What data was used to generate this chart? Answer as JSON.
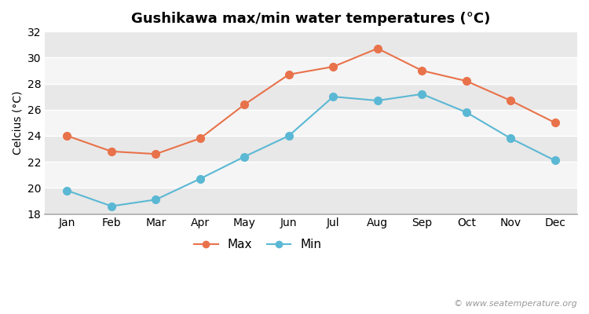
{
  "title": "Gushikawa max/min water temperatures (°C)",
  "ylabel": "Celcius (°C)",
  "months": [
    "Jan",
    "Feb",
    "Mar",
    "Apr",
    "May",
    "Jun",
    "Jul",
    "Aug",
    "Sep",
    "Oct",
    "Nov",
    "Dec"
  ],
  "max_temps": [
    24.0,
    22.8,
    22.6,
    23.8,
    26.4,
    28.7,
    29.3,
    30.7,
    29.0,
    28.2,
    26.7,
    25.0
  ],
  "min_temps": [
    19.8,
    18.6,
    19.1,
    20.7,
    22.4,
    24.0,
    27.0,
    26.7,
    27.2,
    25.8,
    23.8,
    22.1
  ],
  "max_color": "#e8724a",
  "min_color": "#5bb8d4",
  "bg_color": "#ffffff",
  "plot_bg_color": "#ffffff",
  "band_color_dark": "#e8e8e8",
  "band_color_light": "#f5f5f5",
  "ylim": [
    18,
    32
  ],
  "yticks": [
    18,
    20,
    22,
    24,
    26,
    28,
    30,
    32
  ],
  "watermark": "© www.seatemperature.org",
  "legend_max": "Max",
  "legend_min": "Min",
  "linewidth": 1.5,
  "markersize": 7,
  "title_fontsize": 13,
  "axis_fontsize": 10,
  "legend_fontsize": 11
}
